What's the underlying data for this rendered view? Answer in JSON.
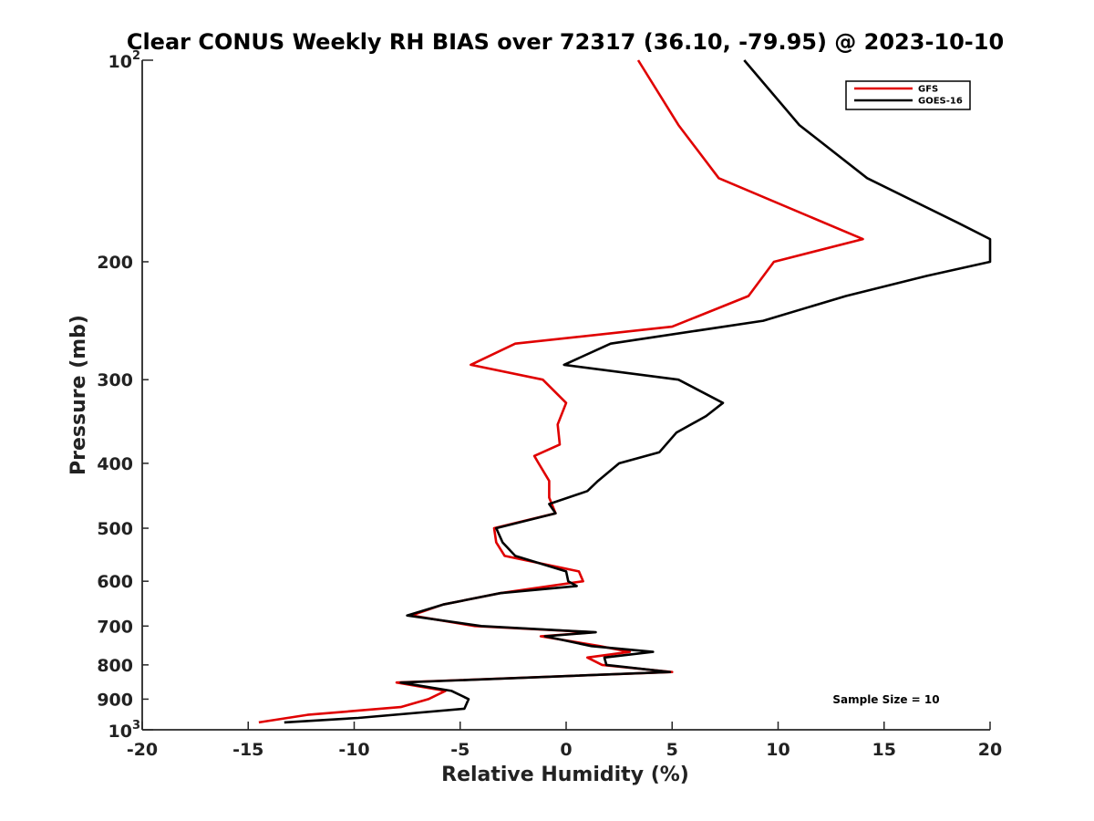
{
  "chart_data": {
    "type": "line",
    "title": "Clear CONUS Weekly RH BIAS over 72317 (36.10, -79.95) @ 2023-10-10",
    "xlabel": "Relative Humidity (%)",
    "ylabel": "Pressure (mb)",
    "xlim": [
      -20,
      20
    ],
    "ylim": [
      100,
      1000
    ],
    "y_scale": "log",
    "y_reversed": true,
    "grid": false,
    "legend_position": "top-right",
    "x_ticks": [
      "-20",
      "-15",
      "-10",
      "-5",
      "0",
      "5",
      "10",
      "15",
      "20"
    ],
    "x_tick_values": [
      -20,
      -15,
      -10,
      -5,
      0,
      5,
      10,
      15,
      20
    ],
    "y_ticks_major": [
      {
        "value": 100,
        "base": "10",
        "exp": "2"
      },
      {
        "value": 1000,
        "base": "10",
        "exp": "3"
      }
    ],
    "y_ticks_minor": [
      {
        "value": 200,
        "label": "200"
      },
      {
        "value": 300,
        "label": "300"
      },
      {
        "value": 400,
        "label": "400"
      },
      {
        "value": 500,
        "label": "500"
      },
      {
        "value": 600,
        "label": "600"
      },
      {
        "value": 700,
        "label": "700"
      },
      {
        "value": 800,
        "label": "800"
      },
      {
        "value": 900,
        "label": "900"
      }
    ],
    "annotation": "Sample Size = 10",
    "series": [
      {
        "name": "GFS",
        "color": "#e00000",
        "points": [
          [
            3.4,
            100
          ],
          [
            5.3,
            125
          ],
          [
            7.2,
            150
          ],
          [
            14.0,
            185
          ],
          [
            9.8,
            200
          ],
          [
            8.6,
            225
          ],
          [
            5.0,
            250
          ],
          [
            -2.4,
            265
          ],
          [
            -4.5,
            285
          ],
          [
            -1.1,
            300
          ],
          [
            0.0,
            325
          ],
          [
            -0.4,
            350
          ],
          [
            -0.3,
            375
          ],
          [
            -1.5,
            390
          ],
          [
            -1.3,
            400
          ],
          [
            -0.8,
            425
          ],
          [
            -0.8,
            450
          ],
          [
            -0.5,
            475
          ],
          [
            -3.4,
            500
          ],
          [
            -3.3,
            525
          ],
          [
            -2.9,
            550
          ],
          [
            0.6,
            580
          ],
          [
            0.8,
            600
          ],
          [
            -3.1,
            625
          ],
          [
            -5.8,
            650
          ],
          [
            -7.3,
            675
          ],
          [
            -4.3,
            700
          ],
          [
            1.3,
            715
          ],
          [
            -1.2,
            725
          ],
          [
            1.6,
            750
          ],
          [
            3.0,
            765
          ],
          [
            1.0,
            780
          ],
          [
            1.7,
            800
          ],
          [
            5.0,
            820
          ],
          [
            -8.0,
            850
          ],
          [
            -5.7,
            875
          ],
          [
            -6.5,
            900
          ],
          [
            -7.8,
            925
          ],
          [
            -12.2,
            950
          ],
          [
            -14.5,
            975
          ]
        ]
      },
      {
        "name": "GOES-16",
        "color": "#000000",
        "points": [
          [
            8.4,
            100
          ],
          [
            11.0,
            125
          ],
          [
            14.2,
            150
          ],
          [
            18.5,
            175
          ],
          [
            20.0,
            185
          ],
          [
            20.0,
            200
          ],
          [
            17.0,
            210
          ],
          [
            13.2,
            225
          ],
          [
            9.3,
            245
          ],
          [
            2.1,
            265
          ],
          [
            -0.1,
            285
          ],
          [
            5.3,
            300
          ],
          [
            7.4,
            325
          ],
          [
            6.6,
            340
          ],
          [
            5.2,
            360
          ],
          [
            4.4,
            385
          ],
          [
            2.5,
            400
          ],
          [
            1.5,
            425
          ],
          [
            1.0,
            440
          ],
          [
            -0.8,
            460
          ],
          [
            -0.5,
            475
          ],
          [
            -3.3,
            500
          ],
          [
            -3.0,
            525
          ],
          [
            -2.4,
            550
          ],
          [
            0.0,
            580
          ],
          [
            0.1,
            600
          ],
          [
            0.5,
            610
          ],
          [
            -3.1,
            625
          ],
          [
            -5.8,
            650
          ],
          [
            -7.5,
            675
          ],
          [
            -4.0,
            700
          ],
          [
            1.4,
            715
          ],
          [
            -1.0,
            725
          ],
          [
            1.2,
            750
          ],
          [
            4.1,
            765
          ],
          [
            1.8,
            780
          ],
          [
            1.9,
            800
          ],
          [
            4.9,
            820
          ],
          [
            -7.8,
            850
          ],
          [
            -5.4,
            875
          ],
          [
            -4.6,
            900
          ],
          [
            -4.8,
            930
          ],
          [
            -9.8,
            960
          ],
          [
            -13.3,
            975
          ]
        ]
      }
    ]
  }
}
